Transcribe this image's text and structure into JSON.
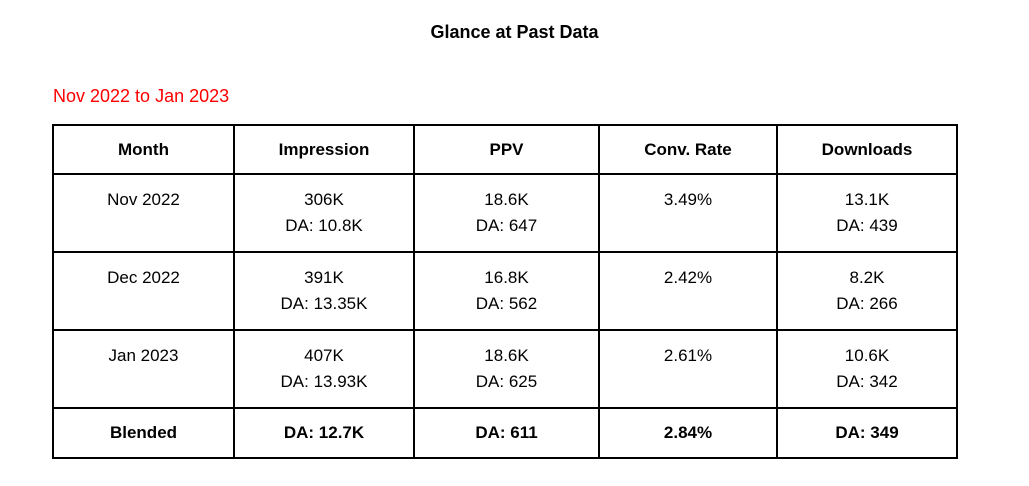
{
  "page": {
    "title": "Glance at Past Data",
    "subtitle": "Nov 2022 to Jan 2023"
  },
  "colors": {
    "subtitle_red": "#ff0000",
    "table_border": "#000000",
    "background": "#ffffff"
  },
  "table": {
    "columns": [
      "Month",
      "Impression",
      "PPV",
      "Conv. Rate",
      "Downloads"
    ],
    "rows": [
      {
        "month": "Nov 2022",
        "impression": [
          "306K",
          "DA: 10.8K"
        ],
        "ppv": [
          "18.6K",
          "DA: 647"
        ],
        "conv_rate": "3.49%",
        "downloads": [
          "13.1K",
          "DA: 439"
        ]
      },
      {
        "month": "Dec 2022",
        "impression": [
          "391K",
          "DA: 13.35K"
        ],
        "ppv": [
          "16.8K",
          "DA: 562"
        ],
        "conv_rate": "2.42%",
        "downloads": [
          "8.2K",
          "DA: 266"
        ]
      },
      {
        "month": "Jan 2023",
        "impression": [
          "407K",
          "DA: 13.93K"
        ],
        "ppv": [
          "18.6K",
          "DA: 625"
        ],
        "conv_rate": "2.61%",
        "downloads": [
          "10.6K",
          "DA: 342"
        ]
      }
    ],
    "summary": {
      "label": "Blended",
      "impression": "DA: 12.7K",
      "ppv": "DA: 611",
      "conv_rate": "2.84%",
      "downloads": "DA: 349"
    }
  }
}
